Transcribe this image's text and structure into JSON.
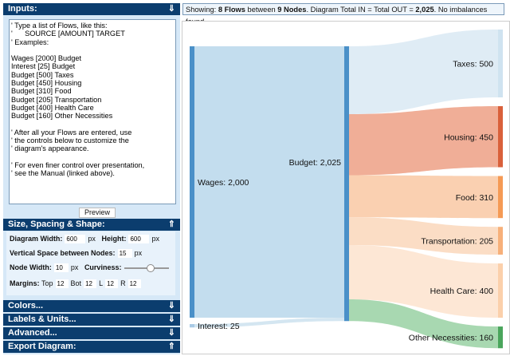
{
  "inputs": {
    "title": "Inputs:",
    "arrow": "⇓",
    "text": "' Type a list of Flows, like this:\n'      SOURCE [AMOUNT] TARGET\n' Examples:\n\nWages [2000] Budget\nInterest [25] Budget\nBudget [500] Taxes\nBudget [450] Housing\nBudget [310] Food\nBudget [205] Transportation\nBudget [400] Health Care\nBudget [160] Other Necessities\n\n' After all your Flows are entered, use\n' the controls below to customize the\n' diagram's appearance.\n\n' For even finer control over presentation,\n' see the Manual (linked above).",
    "preview": "Preview"
  },
  "size": {
    "title": "Size, Spacing & Shape:",
    "arrow": "⇑",
    "width_label": "Diagram Width:",
    "width": "600",
    "px": "px",
    "height_label": "Height:",
    "height": "600",
    "vspace_label": "Vertical Space between Nodes:",
    "vspace": "15",
    "node_width_label": "Node Width:",
    "node_width": "10",
    "curviness_label": "Curviness:",
    "curviness": 0.6,
    "margins_label": "Margins:",
    "top_label": "Top",
    "top": "12",
    "bot_label": "Bot",
    "bot": "12",
    "l_label": "L",
    "l": "12",
    "r_label": "R",
    "r": "12"
  },
  "sections": [
    {
      "title": "Colors...",
      "arrow": "⇓"
    },
    {
      "title": "Labels & Units...",
      "arrow": "⇓"
    },
    {
      "title": "Advanced...",
      "arrow": "⇓"
    },
    {
      "title": "Export Diagram:",
      "arrow": "⇑"
    }
  ],
  "status": {
    "p1": "Showing: ",
    "flows": "8 Flows",
    "p2": " between ",
    "nodes": "9 Nodes",
    "p3": ". Diagram Total IN = Total OUT = ",
    "total": "2,025",
    "p4": ". No imbalances found."
  },
  "diagram": {
    "sources": [
      {
        "name": "Wages",
        "value": 2000,
        "label": "Wages: 2,000",
        "color": "#4a90c8",
        "flow": "#bcd9ec"
      },
      {
        "name": "Interest",
        "value": 25,
        "label": "Interest: 25",
        "color": "#a9cbe6",
        "flow": "#cfe3f0"
      }
    ],
    "middle": {
      "name": "Budget",
      "value": 2025,
      "label": "Budget: 2,025",
      "color": "#4a90c8"
    },
    "targets": [
      {
        "name": "Taxes",
        "value": 500,
        "label": "Taxes: 500",
        "color": "#cfe3f0",
        "flow": "#dbeaf4"
      },
      {
        "name": "Housing",
        "value": 450,
        "label": "Housing: 450",
        "color": "#d9603b",
        "flow": "#eea58c"
      },
      {
        "name": "Food",
        "value": 310,
        "label": "Food: 310",
        "color": "#f59a55",
        "flow": "#f9cba8"
      },
      {
        "name": "Transportation",
        "value": 205,
        "label": "Transportation: 205",
        "color": "#f7b07a",
        "flow": "#fbd9bf"
      },
      {
        "name": "Health Care",
        "value": 400,
        "label": "Health Care: 400",
        "color": "#fbd0ab",
        "flow": "#fde4d0"
      },
      {
        "name": "Other Necessities",
        "value": 160,
        "label": "Other Necessities: 160",
        "color": "#4aa55c",
        "flow": "#9fd4a8"
      }
    ]
  }
}
